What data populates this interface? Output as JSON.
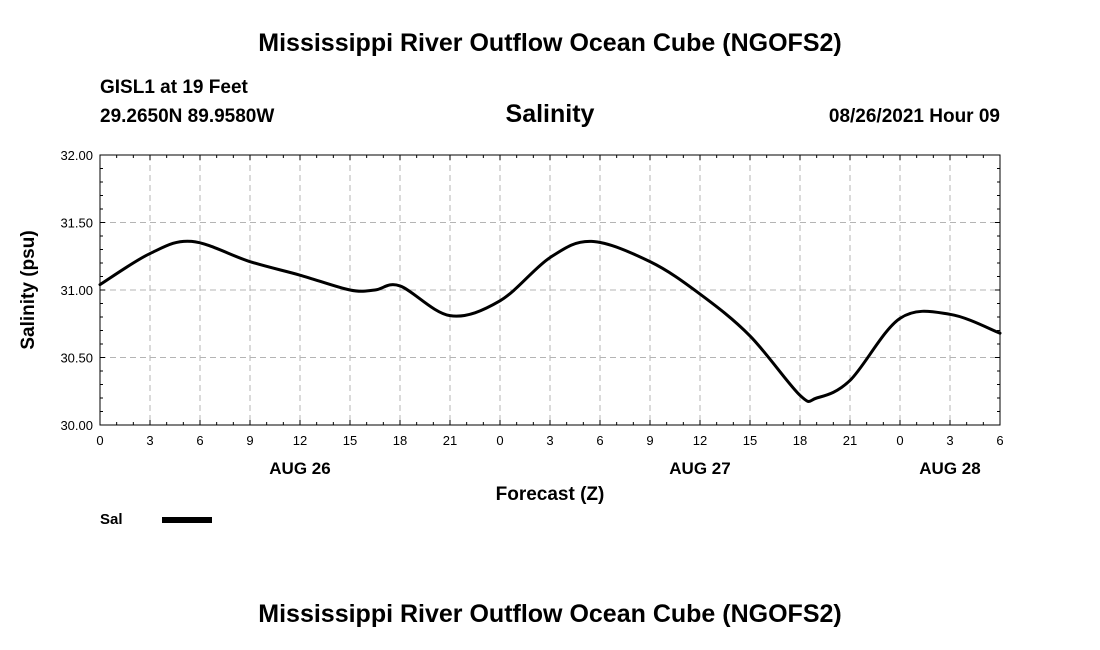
{
  "page": {
    "title_top": "Mississippi River Outflow Ocean Cube (NGOFS2)",
    "title_bottom": "Mississippi River Outflow Ocean Cube (NGOFS2)",
    "station_line": "GISL1 at 19 Feet",
    "coords_line": "29.2650N  89.9580W",
    "timestamp": "08/26/2021 Hour 09"
  },
  "chart_data": {
    "type": "line",
    "title": "Salinity",
    "xlabel": "Forecast (Z)",
    "ylabel": "Salinity (psu)",
    "ylim": [
      30.0,
      32.0
    ],
    "yticks": [
      "30.00",
      "30.50",
      "31.00",
      "31.50",
      "32.00"
    ],
    "xlim": [
      0,
      54
    ],
    "xtick_labels": [
      "0",
      "3",
      "6",
      "9",
      "12",
      "15",
      "18",
      "21",
      "0",
      "3",
      "6",
      "9",
      "12",
      "15",
      "18",
      "21",
      "0",
      "3",
      "6"
    ],
    "day_labels": [
      {
        "label": "AUG 26",
        "hour": 12
      },
      {
        "label": "AUG 27",
        "hour": 36
      },
      {
        "label": "AUG 28",
        "hour": 51
      }
    ],
    "grid": true,
    "legend": [
      {
        "name": "Sal",
        "color": "#000000"
      }
    ],
    "series": [
      {
        "name": "Sal",
        "x": [
          0,
          3,
          5.5,
          9,
          12,
          15,
          16.5,
          18,
          21,
          24,
          27,
          29.5,
          33,
          36,
          39,
          42,
          43,
          45,
          48,
          51,
          54
        ],
        "y": [
          31.04,
          31.27,
          31.36,
          31.21,
          31.11,
          31.0,
          31.0,
          31.03,
          30.81,
          30.92,
          31.24,
          31.36,
          31.21,
          30.97,
          30.66,
          30.22,
          30.2,
          30.33,
          30.79,
          30.82,
          30.68
        ]
      }
    ]
  }
}
